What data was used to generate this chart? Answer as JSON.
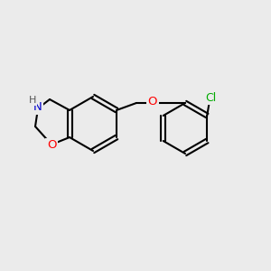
{
  "background_color": "#ebebeb",
  "bond_color": "#000000",
  "bond_width": 1.5,
  "atom_colors": {
    "N": "#0000cc",
    "O": "#ff0000",
    "Cl": "#00aa00",
    "H": "#555555"
  },
  "font_size": 8.5
}
